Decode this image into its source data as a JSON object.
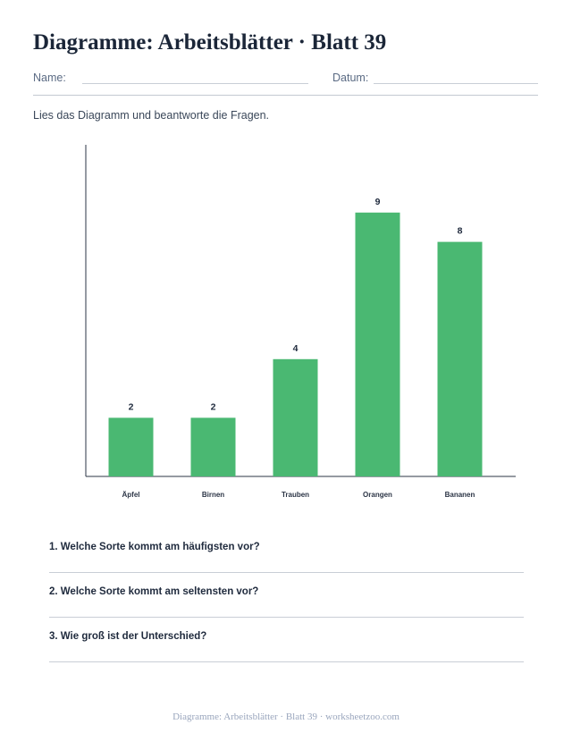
{
  "header": {
    "title": "Diagramme: Arbeitsblätter · Blatt 39",
    "name_label": "Name:",
    "date_label": "Datum:"
  },
  "instructions": "Lies das Diagramm und beantworte die Fragen.",
  "chart_data": {
    "type": "bar",
    "categories": [
      "Äpfel",
      "Birnen",
      "Trauben",
      "Orangen",
      "Bananen"
    ],
    "values": [
      2,
      2,
      4,
      9,
      8
    ],
    "data_labels": [
      "2",
      "2",
      "4",
      "9",
      "8"
    ],
    "ylim": [
      0,
      10
    ],
    "grid": false,
    "bar_color": "#4ab872"
  },
  "questions": [
    "1. Welche Sorte kommt am häufigsten vor?",
    "2. Welche Sorte kommt am seltensten vor?",
    "3. Wie groß ist der Unterschied?"
  ],
  "footer": "Diagramme: Arbeitsblätter · Blatt 39 · worksheetzoo.com"
}
